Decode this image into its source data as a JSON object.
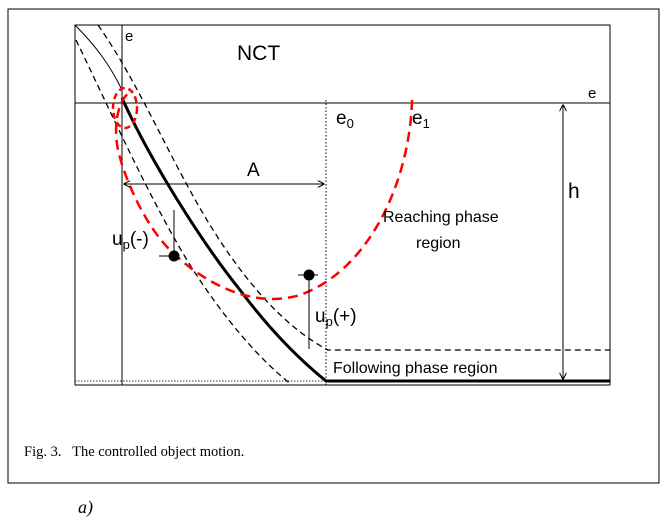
{
  "diagram": {
    "corner_label": "e",
    "region_label": "NCT",
    "axis_label": "e",
    "e0_base": "e",
    "e0_sub": "0",
    "e1_base": "e",
    "e1_sub": "1",
    "distance_label": "A",
    "height_label": "h",
    "reaching_line1": "Reaching phase",
    "reaching_line2": "region",
    "up_neg_base": "u",
    "up_neg_sub": "p",
    "up_neg_sign": "(-)",
    "up_pos_base": "u",
    "up_pos_sub": "p",
    "up_pos_sign": "(+)",
    "following_label": "Following phase region"
  },
  "caption": "Fig. 3.   The controlled object motion.",
  "sublabel": "a)"
}
